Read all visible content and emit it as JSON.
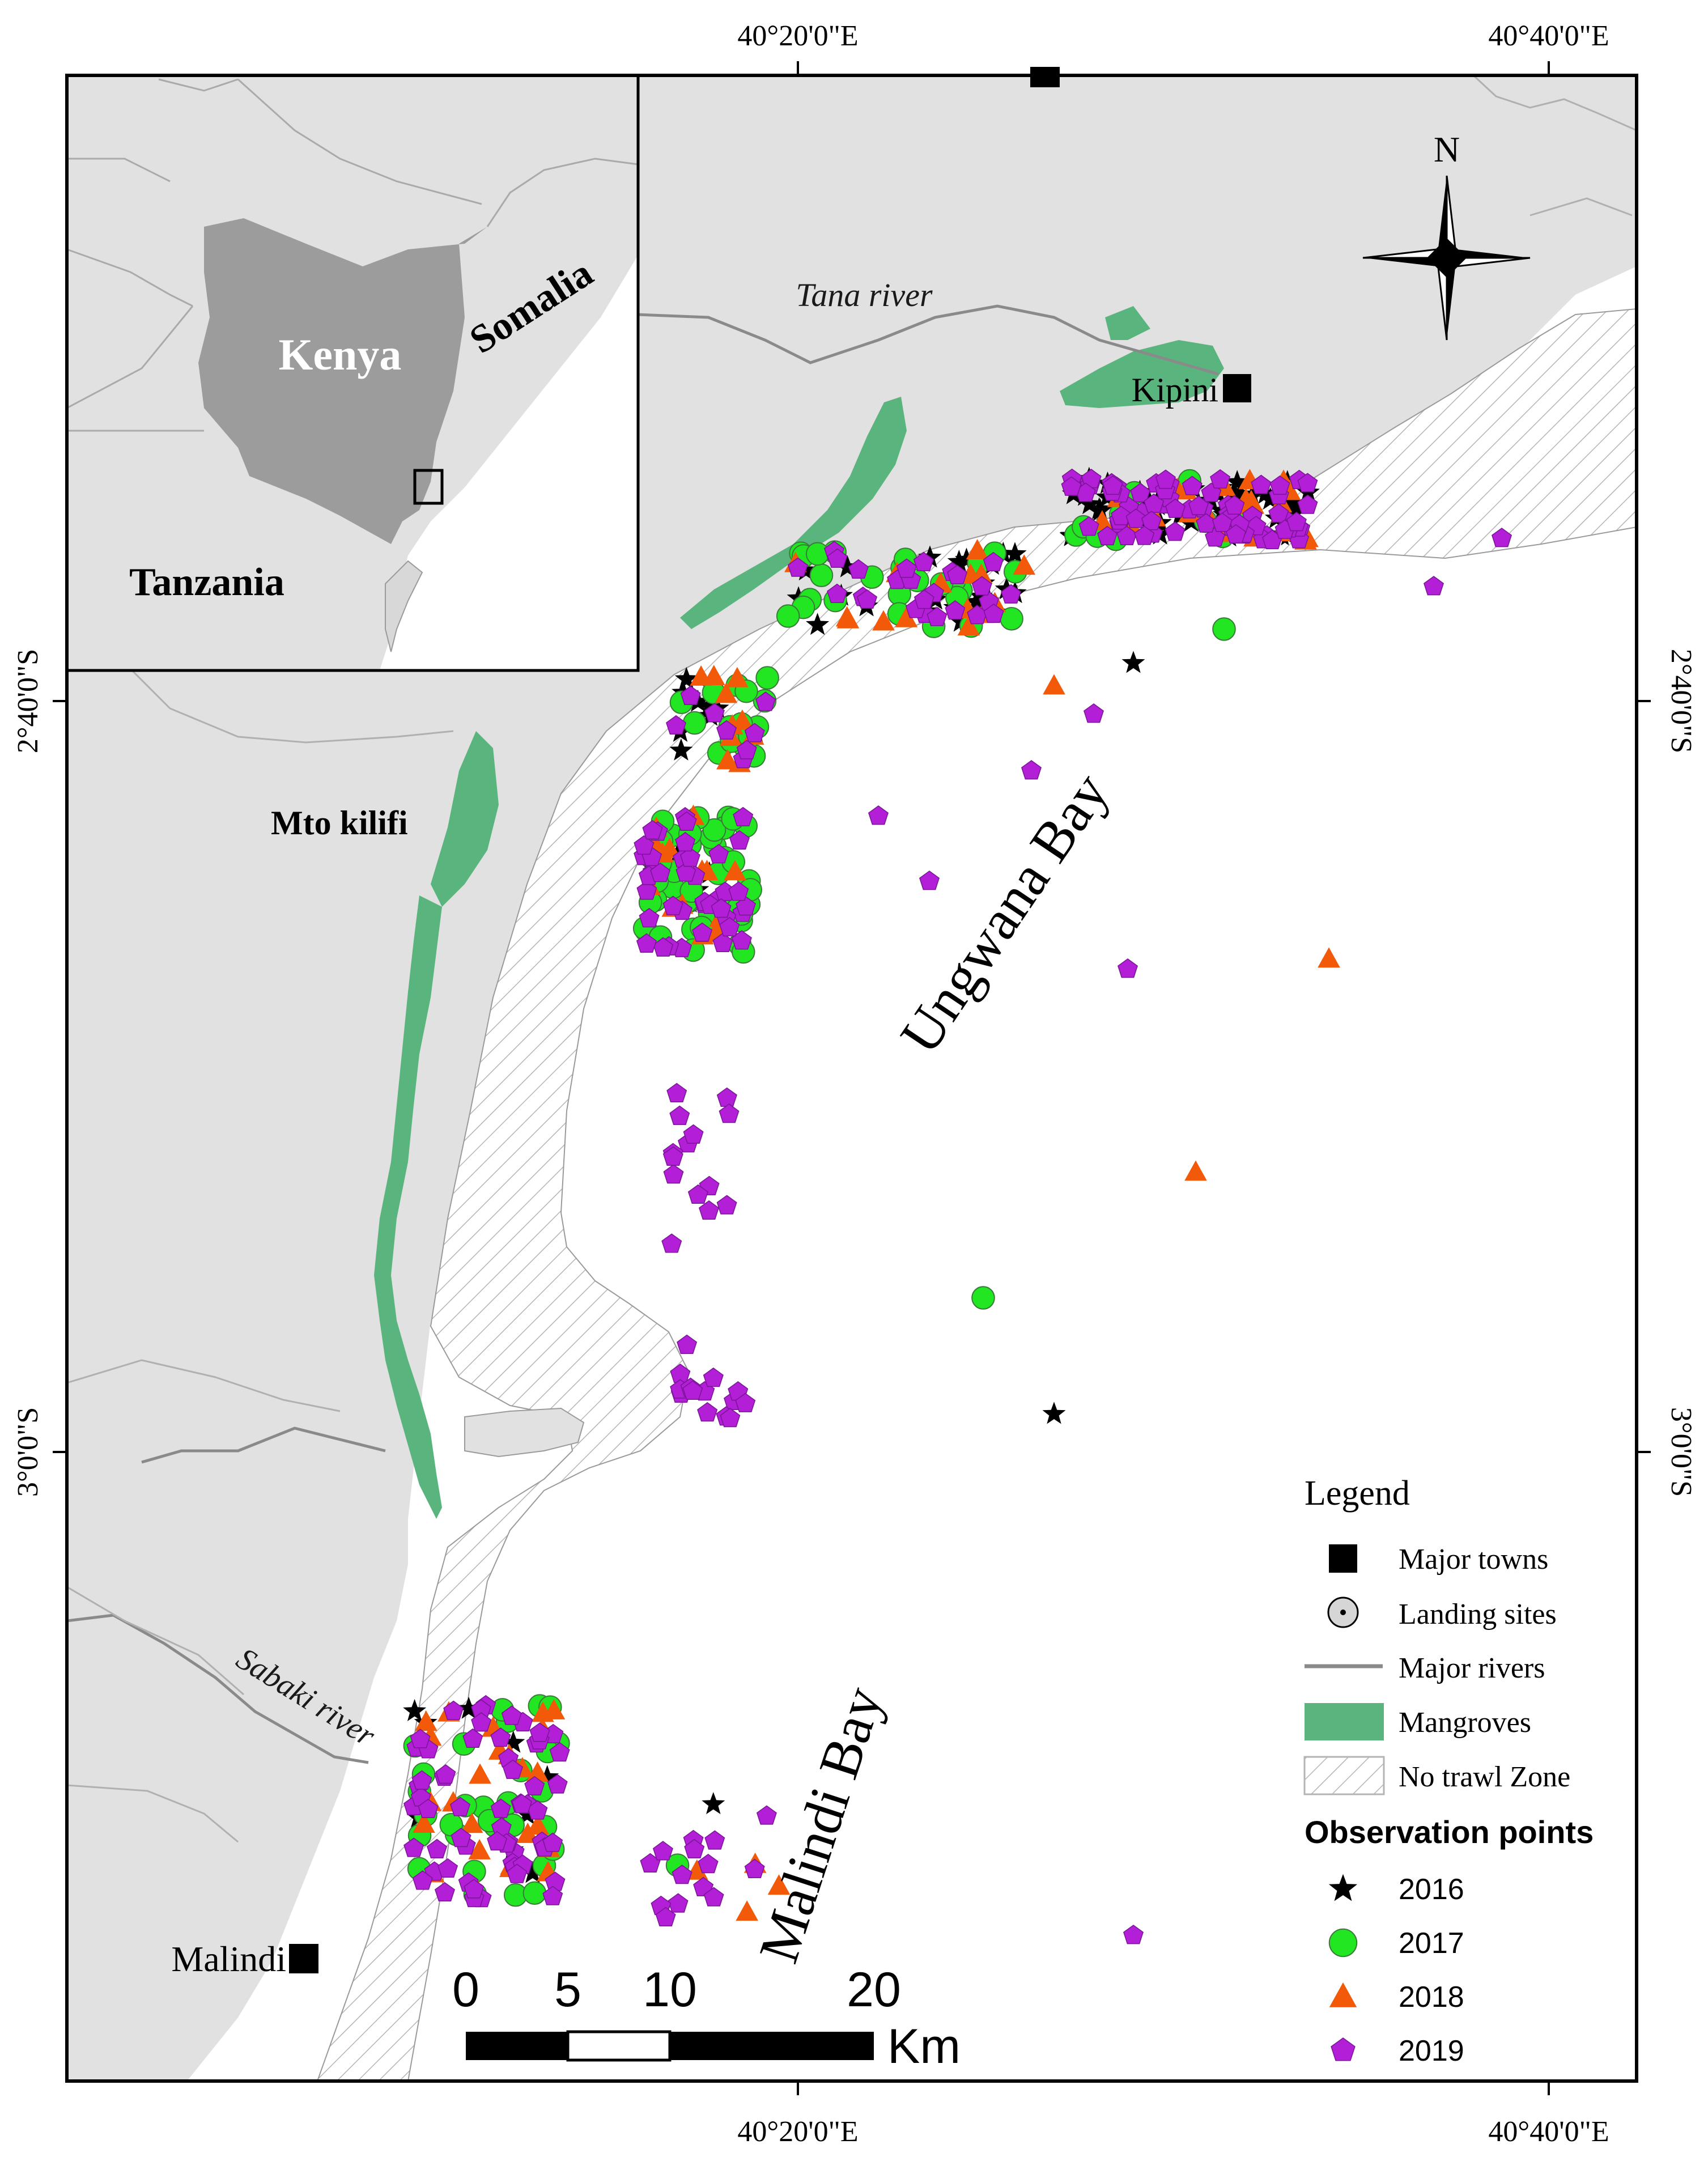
{
  "map": {
    "graticule": {
      "top_lon_labels": [
        "40°20'0\"E",
        "40°40'0\"E"
      ],
      "bottom_lon_labels": [
        "40°20'0\"E",
        "40°40'0\"E"
      ],
      "left_lat_labels": [
        "2°40'0\"S",
        "3°0'0\"S"
      ],
      "right_lat_labels": [
        "2°40'0\"S",
        "3°0'0\"S"
      ]
    },
    "place_labels": {
      "kipini": "Kipini",
      "malindi": "Malindi",
      "mto_kilifi": "Mto kilifi",
      "tana_river": "Tana river",
      "sabaki_river": "Sabaki river",
      "ungwana_bay": "Ungwana Bay",
      "malindi_bay": "Malindi Bay"
    },
    "inset": {
      "kenya": "Kenya",
      "somalia": "Somalia",
      "tanzania": "Tanzania"
    },
    "north_arrow": {
      "label": "N"
    },
    "scale_bar": {
      "ticks": [
        "0",
        "5",
        "10",
        "20"
      ],
      "unit": "Km"
    },
    "legend": {
      "title": "Legend",
      "items": [
        {
          "symbol": "square",
          "label": "Major towns"
        },
        {
          "symbol": "landing",
          "label": "Landing sites"
        },
        {
          "symbol": "river",
          "label": "Major rivers"
        },
        {
          "symbol": "mangrove",
          "label": "Mangroves"
        },
        {
          "symbol": "hatch",
          "label": "No trawl Zone"
        }
      ],
      "obs_title": "Observation points",
      "obs_items": [
        {
          "symbol": "star",
          "label": "2016",
          "color": "#000000"
        },
        {
          "symbol": "circle",
          "label": "2017",
          "color": "#22e622"
        },
        {
          "symbol": "triangle",
          "label": "2018",
          "color": "#f25a0a"
        },
        {
          "symbol": "pentagon",
          "label": "2019",
          "color": "#b21fd6"
        }
      ]
    },
    "colors": {
      "land": "#e1e1e1",
      "inset_kenya": "#9c9c9c",
      "mangrove": "#5ab47d",
      "river": "#8a8a8a",
      "border": "#aaaaaa"
    }
  }
}
